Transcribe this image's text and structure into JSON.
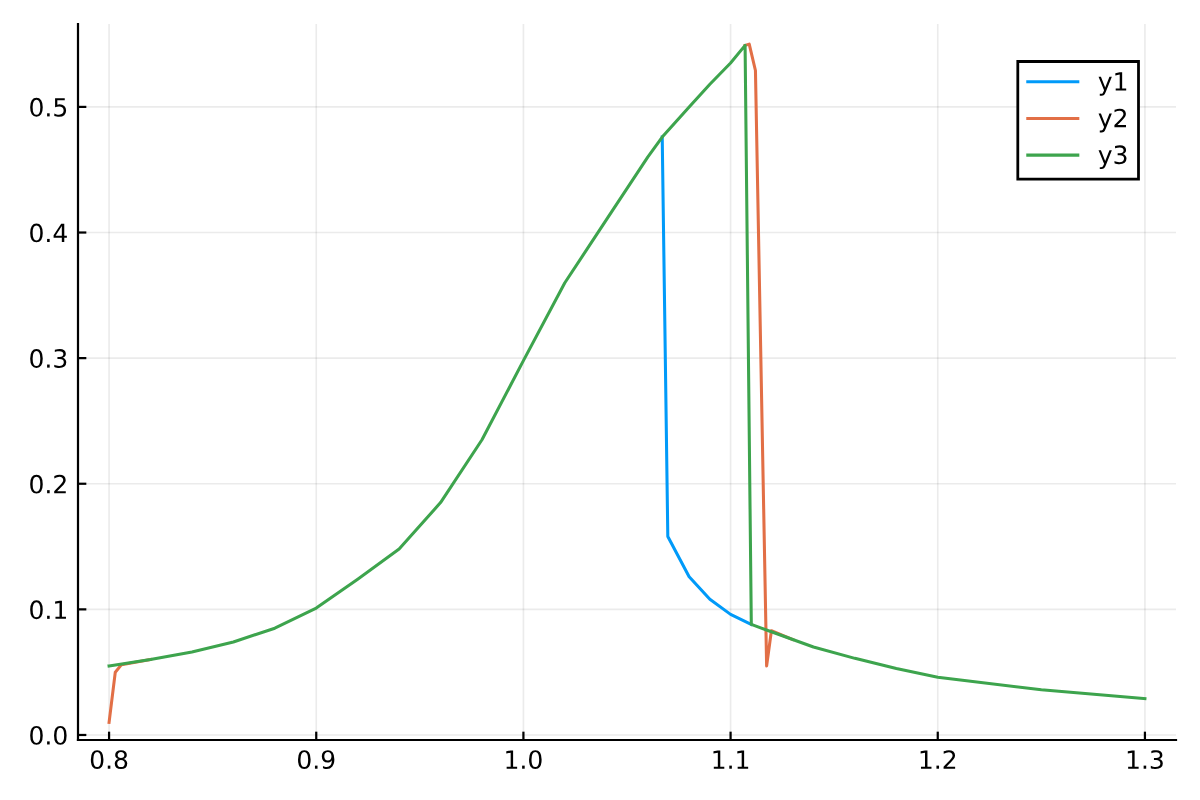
{
  "chart_data": {
    "type": "line",
    "xlim": [
      0.785,
      1.315
    ],
    "ylim": [
      -0.004,
      0.566
    ],
    "xticks": [
      0.8,
      0.9,
      {
        "value": 1.0,
        "label": "1.0"
      },
      1.1,
      1.2,
      1.3
    ],
    "yticks": [
      {
        "value": 0.0,
        "label": "0.0"
      },
      0.1,
      0.2,
      0.3,
      0.4,
      0.5
    ],
    "grid": true,
    "legend": "top right",
    "marker": "none",
    "line_style": "solid",
    "series": [
      {
        "name": "y1",
        "color": "#009af9",
        "x": [
          1.067,
          1.0697,
          1.08,
          1.09,
          1.1,
          1.11
        ],
        "values": [
          0.476,
          0.158,
          0.126,
          0.108,
          0.096,
          0.088
        ]
      },
      {
        "name": "y2",
        "color": "#e26f46",
        "x": [
          0.8,
          0.803,
          0.806,
          0.82,
          0.9,
          1.107,
          1.109,
          1.112,
          1.1174,
          1.1197,
          1.13
        ],
        "values": [
          0.01,
          0.05,
          0.056,
          0.06,
          null,
          0.549,
          0.55,
          0.529,
          0.055,
          0.083,
          0.076
        ]
      },
      {
        "name": "y3",
        "color": "#3da44d",
        "x": [
          0.8,
          0.82,
          0.84,
          0.86,
          0.88,
          0.9,
          0.92,
          0.94,
          0.96,
          0.98,
          1.0,
          1.02,
          1.04,
          1.06,
          1.067,
          1.08,
          1.09,
          1.1,
          1.107,
          1.11,
          1.12,
          1.14,
          1.16,
          1.18,
          1.2,
          1.25,
          1.3
        ],
        "values": [
          0.055,
          0.06,
          0.066,
          0.074,
          0.085,
          0.101,
          0.124,
          0.148,
          0.185,
          0.235,
          0.298,
          0.36,
          0.41,
          0.46,
          0.476,
          0.5,
          0.518,
          0.535,
          0.549,
          0.088,
          0.082,
          0.07,
          0.061,
          0.053,
          0.046,
          0.036,
          0.029
        ]
      }
    ]
  }
}
